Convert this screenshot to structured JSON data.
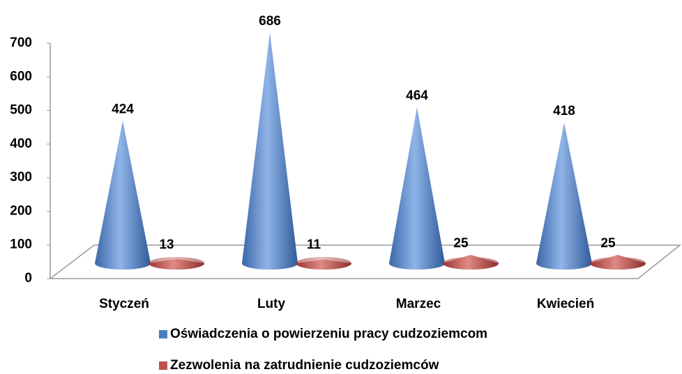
{
  "chart_data": {
    "type": "cone",
    "categories": [
      "Styczeń",
      "Luty",
      "Marzec",
      "Kwiecień"
    ],
    "series": [
      {
        "name": "Oświadczenia o powierzeniu pracy cudzoziemcom",
        "color": "#4a7ebf",
        "values": [
          424,
          686,
          464,
          418
        ]
      },
      {
        "name": "Zezwolenia na zatrudnienie cudzoziemców",
        "color": "#c0504d",
        "values": [
          13,
          11,
          25,
          25
        ]
      }
    ],
    "ylim": [
      0,
      700
    ],
    "yticks": [
      0,
      100,
      200,
      300,
      400,
      500,
      600,
      700
    ]
  }
}
